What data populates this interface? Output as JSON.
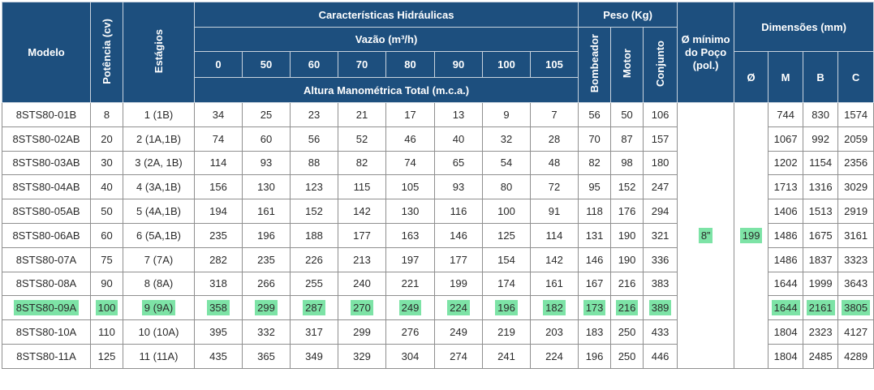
{
  "headers": {
    "modelo": "Modelo",
    "potencia": "Potência (cv)",
    "estagios": "Estágios",
    "caracteristicas": "Características Hidráulicas",
    "vazao": "Vazão (m³/h)",
    "vazao_values": [
      "0",
      "50",
      "60",
      "70",
      "80",
      "90",
      "100",
      "105"
    ],
    "altura": "Altura Manométrica Total (m.c.a.)",
    "peso": "Peso (Kg)",
    "bombeador": "Bombeador",
    "motor": "Motor",
    "conjunto": "Conjunto",
    "diam_poco": "Ø mínimo do Poço (pol.)",
    "dimensoes": "Dimensões (mm)",
    "dim_o": "Ø",
    "dim_m": "M",
    "dim_b": "B",
    "dim_c": "C"
  },
  "shared": {
    "poco": "8”",
    "diam": "199"
  },
  "rows": [
    {
      "modelo": "8STS80-01B",
      "cv": "8",
      "estagios": "1 (1B)",
      "h": [
        "34",
        "25",
        "23",
        "21",
        "17",
        "13",
        "9",
        "7"
      ],
      "bomb": "56",
      "motor": "50",
      "conj": "106",
      "m": "744",
      "b": "830",
      "c": "1574"
    },
    {
      "modelo": "8STS80-02AB",
      "cv": "20",
      "estagios": "2 (1A,1B)",
      "h": [
        "74",
        "60",
        "56",
        "52",
        "46",
        "40",
        "32",
        "28"
      ],
      "bomb": "70",
      "motor": "87",
      "conj": "157",
      "m": "1067",
      "b": "992",
      "c": "2059"
    },
    {
      "modelo": "8STS80-03AB",
      "cv": "30",
      "estagios": "3 (2A, 1B)",
      "h": [
        "114",
        "93",
        "88",
        "82",
        "74",
        "65",
        "54",
        "48"
      ],
      "bomb": "82",
      "motor": "98",
      "conj": "180",
      "m": "1202",
      "b": "1154",
      "c": "2356"
    },
    {
      "modelo": "8STS80-04AB",
      "cv": "40",
      "estagios": "4 (3A,1B)",
      "h": [
        "156",
        "130",
        "123",
        "115",
        "105",
        "93",
        "80",
        "72"
      ],
      "bomb": "95",
      "motor": "152",
      "conj": "247",
      "m": "1713",
      "b": "1316",
      "c": "3029"
    },
    {
      "modelo": "8STS80-05AB",
      "cv": "50",
      "estagios": "5 (4A,1B)",
      "h": [
        "194",
        "161",
        "152",
        "142",
        "130",
        "116",
        "100",
        "91"
      ],
      "bomb": "118",
      "motor": "176",
      "conj": "294",
      "m": "1406",
      "b": "1513",
      "c": "2919"
    },
    {
      "modelo": "8STS80-06AB",
      "cv": "60",
      "estagios": "6 (5A,1B)",
      "h": [
        "235",
        "196",
        "188",
        "177",
        "163",
        "146",
        "125",
        "114"
      ],
      "bomb": "131",
      "motor": "190",
      "conj": "321",
      "m": "1486",
      "b": "1675",
      "c": "3161"
    },
    {
      "modelo": "8STS80-07A",
      "cv": "75",
      "estagios": "7 (7A)",
      "h": [
        "282",
        "235",
        "226",
        "213",
        "197",
        "177",
        "154",
        "142"
      ],
      "bomb": "146",
      "motor": "190",
      "conj": "336",
      "m": "1486",
      "b": "1837",
      "c": "3323"
    },
    {
      "modelo": "8STS80-08A",
      "cv": "90",
      "estagios": "8 (8A)",
      "h": [
        "318",
        "266",
        "255",
        "240",
        "221",
        "199",
        "174",
        "161"
      ],
      "bomb": "167",
      "motor": "216",
      "conj": "383",
      "m": "1644",
      "b": "1999",
      "c": "3643"
    },
    {
      "modelo": "8STS80-09A",
      "cv": "100",
      "estagios": "9 (9A)",
      "h": [
        "358",
        "299",
        "287",
        "270",
        "249",
        "224",
        "196",
        "182"
      ],
      "bomb": "173",
      "motor": "216",
      "conj": "389",
      "m": "1644",
      "b": "2161",
      "c": "3805"
    },
    {
      "modelo": "8STS80-10A",
      "cv": "110",
      "estagios": "10 (10A)",
      "h": [
        "395",
        "332",
        "317",
        "299",
        "276",
        "249",
        "219",
        "203"
      ],
      "bomb": "183",
      "motor": "250",
      "conj": "433",
      "m": "1804",
      "b": "2323",
      "c": "4127"
    },
    {
      "modelo": "8STS80-11A",
      "cv": "125",
      "estagios": "11 (11A)",
      "h": [
        "435",
        "365",
        "349",
        "329",
        "304",
        "274",
        "241",
        "224"
      ],
      "bomb": "196",
      "motor": "250",
      "conj": "446",
      "m": "1804",
      "b": "2485",
      "c": "4289"
    }
  ],
  "highlight_row": 8,
  "highlight_color": "#7de3a6",
  "header_color": "#1d4f7e"
}
